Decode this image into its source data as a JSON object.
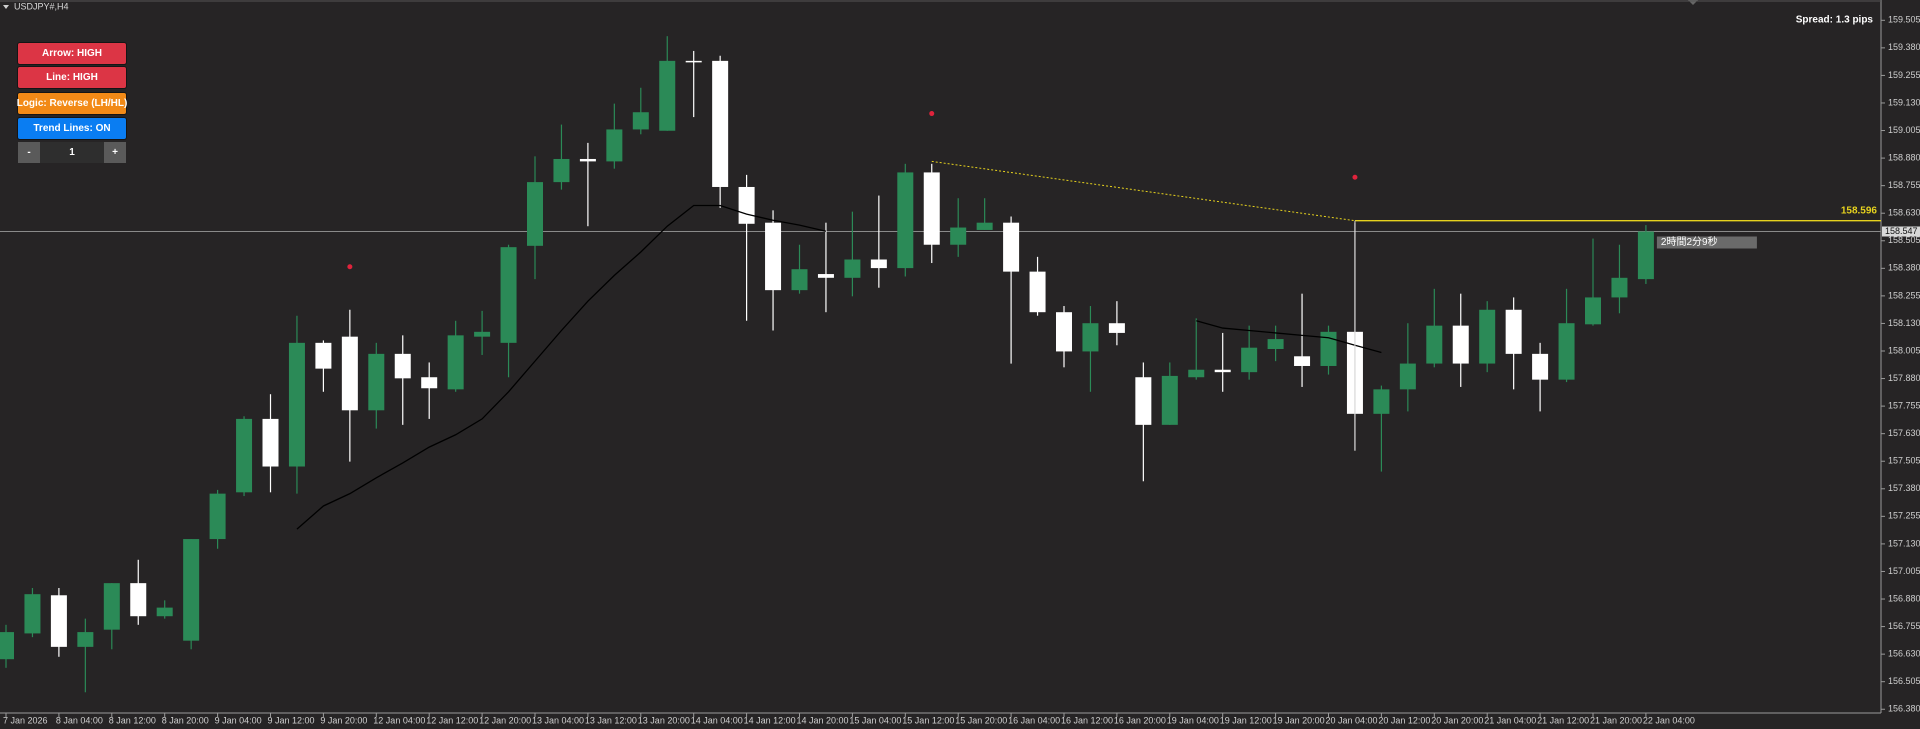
{
  "chart_data": {
    "type": "candlestick",
    "title": "USDJPY#,H4",
    "categories": [
      "7 Jan 2026",
      null,
      "8 Jan 04:00",
      null,
      "8 Jan 12:00",
      null,
      "8 Jan 20:00",
      null,
      "9 Jan 04:00",
      null,
      "9 Jan 12:00",
      null,
      "9 Jan 20:00",
      null,
      "12 Jan 04:00",
      null,
      "12 Jan 12:00",
      null,
      "12 Jan 20:00",
      null,
      "13 Jan 04:00",
      null,
      "13 Jan 12:00",
      null,
      "13 Jan 20:00",
      null,
      "14 Jan 04:00",
      null,
      "14 Jan 12:00",
      null,
      "14 Jan 20:00",
      null,
      "15 Jan 04:00",
      null,
      "15 Jan 12:00",
      null,
      "15 Jan 20:00",
      null,
      "16 Jan 04:00",
      null,
      "16 Jan 12:00",
      null,
      "16 Jan 20:00",
      null,
      "19 Jan 04:00",
      null,
      "19 Jan 12:00",
      null,
      "19 Jan 20:00",
      null,
      "20 Jan 04:00",
      null,
      "20 Jan 12:00",
      null,
      "20 Jan 20:00",
      null,
      "21 Jan 04:00",
      null,
      "21 Jan 12:00",
      null,
      "21 Jan 20:00",
      null,
      "22 Jan 04:00"
    ],
    "open": [
      156.607,
      156.724,
      156.897,
      156.663,
      156.741,
      156.952,
      156.802,
      156.691,
      157.152,
      157.364,
      157.697,
      157.481,
      158.042,
      158.07,
      157.736,
      157.992,
      157.886,
      157.831,
      158.07,
      158.042,
      158.482,
      158.771,
      158.876,
      158.865,
      159.01,
      159.004,
      159.321,
      159.321,
      158.749,
      158.587,
      158.281,
      158.354,
      158.337,
      158.42,
      158.381,
      158.815,
      158.487,
      158.554,
      158.587,
      158.365,
      158.181,
      158.003,
      158.131,
      157.886,
      157.67,
      157.886,
      157.92,
      157.909,
      158.014,
      157.981,
      157.937,
      158.092,
      157.72,
      157.831,
      157.948,
      158.12,
      157.948,
      158.192,
      157.992,
      157.875,
      158.126,
      158.248,
      158.331
    ],
    "high": [
      156.763,
      156.93,
      156.93,
      156.791,
      156.952,
      157.058,
      156.874,
      157.152,
      157.375,
      157.709,
      157.809,
      158.165,
      158.053,
      158.192,
      158.042,
      158.076,
      157.953,
      158.142,
      158.187,
      158.487,
      158.888,
      159.032,
      158.949,
      159.127,
      159.199,
      159.433,
      159.366,
      159.344,
      158.804,
      158.643,
      158.487,
      158.587,
      158.637,
      158.71,
      158.854,
      158.854,
      158.698,
      158.698,
      158.615,
      158.432,
      158.209,
      158.209,
      158.231,
      157.953,
      157.953,
      158.153,
      158.087,
      158.12,
      158.12,
      158.265,
      158.12,
      158.587,
      157.848,
      158.131,
      158.287,
      158.265,
      158.231,
      158.248,
      158.042,
      158.287,
      158.515,
      158.487,
      158.576
    ],
    "low": [
      156.568,
      156.707,
      156.618,
      156.457,
      156.652,
      156.763,
      156.791,
      156.652,
      157.108,
      157.347,
      157.364,
      157.358,
      157.82,
      157.503,
      157.653,
      157.67,
      157.697,
      157.82,
      157.987,
      157.886,
      158.331,
      158.737,
      158.571,
      158.832,
      158.988,
      159.004,
      159.066,
      158.654,
      158.142,
      158.098,
      158.265,
      158.181,
      158.253,
      158.292,
      158.343,
      158.404,
      158.432,
      158.554,
      157.948,
      158.165,
      157.931,
      157.82,
      158.031,
      157.414,
      157.67,
      157.875,
      157.82,
      157.875,
      157.959,
      157.842,
      157.898,
      157.553,
      157.458,
      157.731,
      157.931,
      157.842,
      157.909,
      157.831,
      157.731,
      157.864,
      158.12,
      158.176,
      158.309
    ],
    "close": [
      156.73,
      156.902,
      156.663,
      156.73,
      156.952,
      156.802,
      156.841,
      157.152,
      157.358,
      157.697,
      157.481,
      158.042,
      157.925,
      157.736,
      157.992,
      157.881,
      157.836,
      158.076,
      158.092,
      158.476,
      158.771,
      158.876,
      158.865,
      159.01,
      159.088,
      159.321,
      159.316,
      158.749,
      158.582,
      158.281,
      158.376,
      158.337,
      158.42,
      158.381,
      158.815,
      158.487,
      158.565,
      158.587,
      158.365,
      158.181,
      158.003,
      158.131,
      158.087,
      157.67,
      157.892,
      157.92,
      157.909,
      158.02,
      158.059,
      157.937,
      158.092,
      157.72,
      157.831,
      157.948,
      158.12,
      157.948,
      158.192,
      157.992,
      157.875,
      158.131,
      158.248,
      158.337,
      158.547
    ],
    "up_color": "#2b8a57",
    "down_color": "#ffffff",
    "ylim": [
      156.363,
      159.588
    ],
    "yticks": [
      {
        "value": 156.38,
        "label": "156.380"
      },
      156.505,
      {
        "value": 156.63,
        "label": "156.630"
      },
      156.755,
      {
        "value": 156.88,
        "label": "156.880"
      },
      157.005,
      {
        "value": 157.13,
        "label": "157.130"
      },
      157.255,
      {
        "value": 157.38,
        "label": "157.380"
      },
      157.505,
      {
        "value": 157.63,
        "label": "157.630"
      },
      157.755,
      {
        "value": 157.88,
        "label": "157.880"
      },
      158.005,
      {
        "value": 158.13,
        "label": "158.130"
      },
      158.255,
      {
        "value": 158.38,
        "label": "158.380"
      },
      158.505,
      {
        "value": 158.63,
        "label": "158.630"
      },
      158.755,
      {
        "value": 158.88,
        "label": "158.880"
      },
      159.005,
      {
        "value": 159.13,
        "label": "159.130"
      },
      159.255,
      {
        "value": 159.38,
        "label": "159.380"
      },
      159.505
    ],
    "overlay_lines": [
      {
        "color": "#000000",
        "values": [
          null,
          null,
          null,
          null,
          null,
          null,
          null,
          null,
          null,
          null,
          null,
          157.197,
          157.302,
          157.358,
          157.43,
          157.497,
          157.569,
          157.625,
          157.697,
          157.82,
          157.959,
          158.098,
          158.231,
          158.348,
          158.454,
          158.571,
          158.665,
          158.665,
          158.626,
          158.598,
          158.576,
          158.548,
          null,
          null,
          null,
          null,
          null,
          null,
          null,
          null,
          null,
          null,
          null,
          null,
          null,
          158.142,
          158.109,
          158.098,
          158.087,
          158.076,
          158.065,
          158.031,
          157.998,
          null,
          null,
          null,
          null,
          null,
          null,
          null,
          null,
          null,
          null
        ]
      }
    ],
    "signal_markers": {
      "color": "#e0233c",
      "values": [
        null,
        null,
        null,
        null,
        null,
        null,
        null,
        null,
        null,
        null,
        null,
        null,
        null,
        158.387,
        null,
        null,
        null,
        null,
        null,
        null,
        null,
        null,
        null,
        null,
        null,
        null,
        null,
        null,
        null,
        null,
        null,
        null,
        null,
        null,
        null,
        159.082,
        null,
        null,
        null,
        null,
        null,
        null,
        null,
        null,
        null,
        null,
        null,
        null,
        null,
        null,
        null,
        158.793,
        null,
        null,
        null,
        null,
        null,
        null,
        null,
        null,
        null,
        null,
        null
      ]
    },
    "trend_line": {
      "color": "#e6d21e",
      "x": [
        35,
        51
      ],
      "values": [
        158.865,
        158.596
      ]
    },
    "level_line": {
      "color": "#e6d21e",
      "value": 158.596
    },
    "current_price": {
      "value": 158.547,
      "countdown": "2時間2分9秒"
    }
  },
  "header": {
    "spread": "Spread: 1.3 pips"
  },
  "controls": {
    "buttons": [
      {
        "label": "Arrow: HIGH",
        "color": "#dc3545"
      },
      {
        "label": "Line: HIGH",
        "color": "#dc3545"
      },
      {
        "label": "Logic: Reverse (LH/HL)",
        "color": "#f28a17"
      },
      {
        "label": "Trend Lines: ON",
        "color": "#0a7df2"
      }
    ],
    "stepper": {
      "minus": "-",
      "value": 1,
      "plus": "+"
    }
  }
}
